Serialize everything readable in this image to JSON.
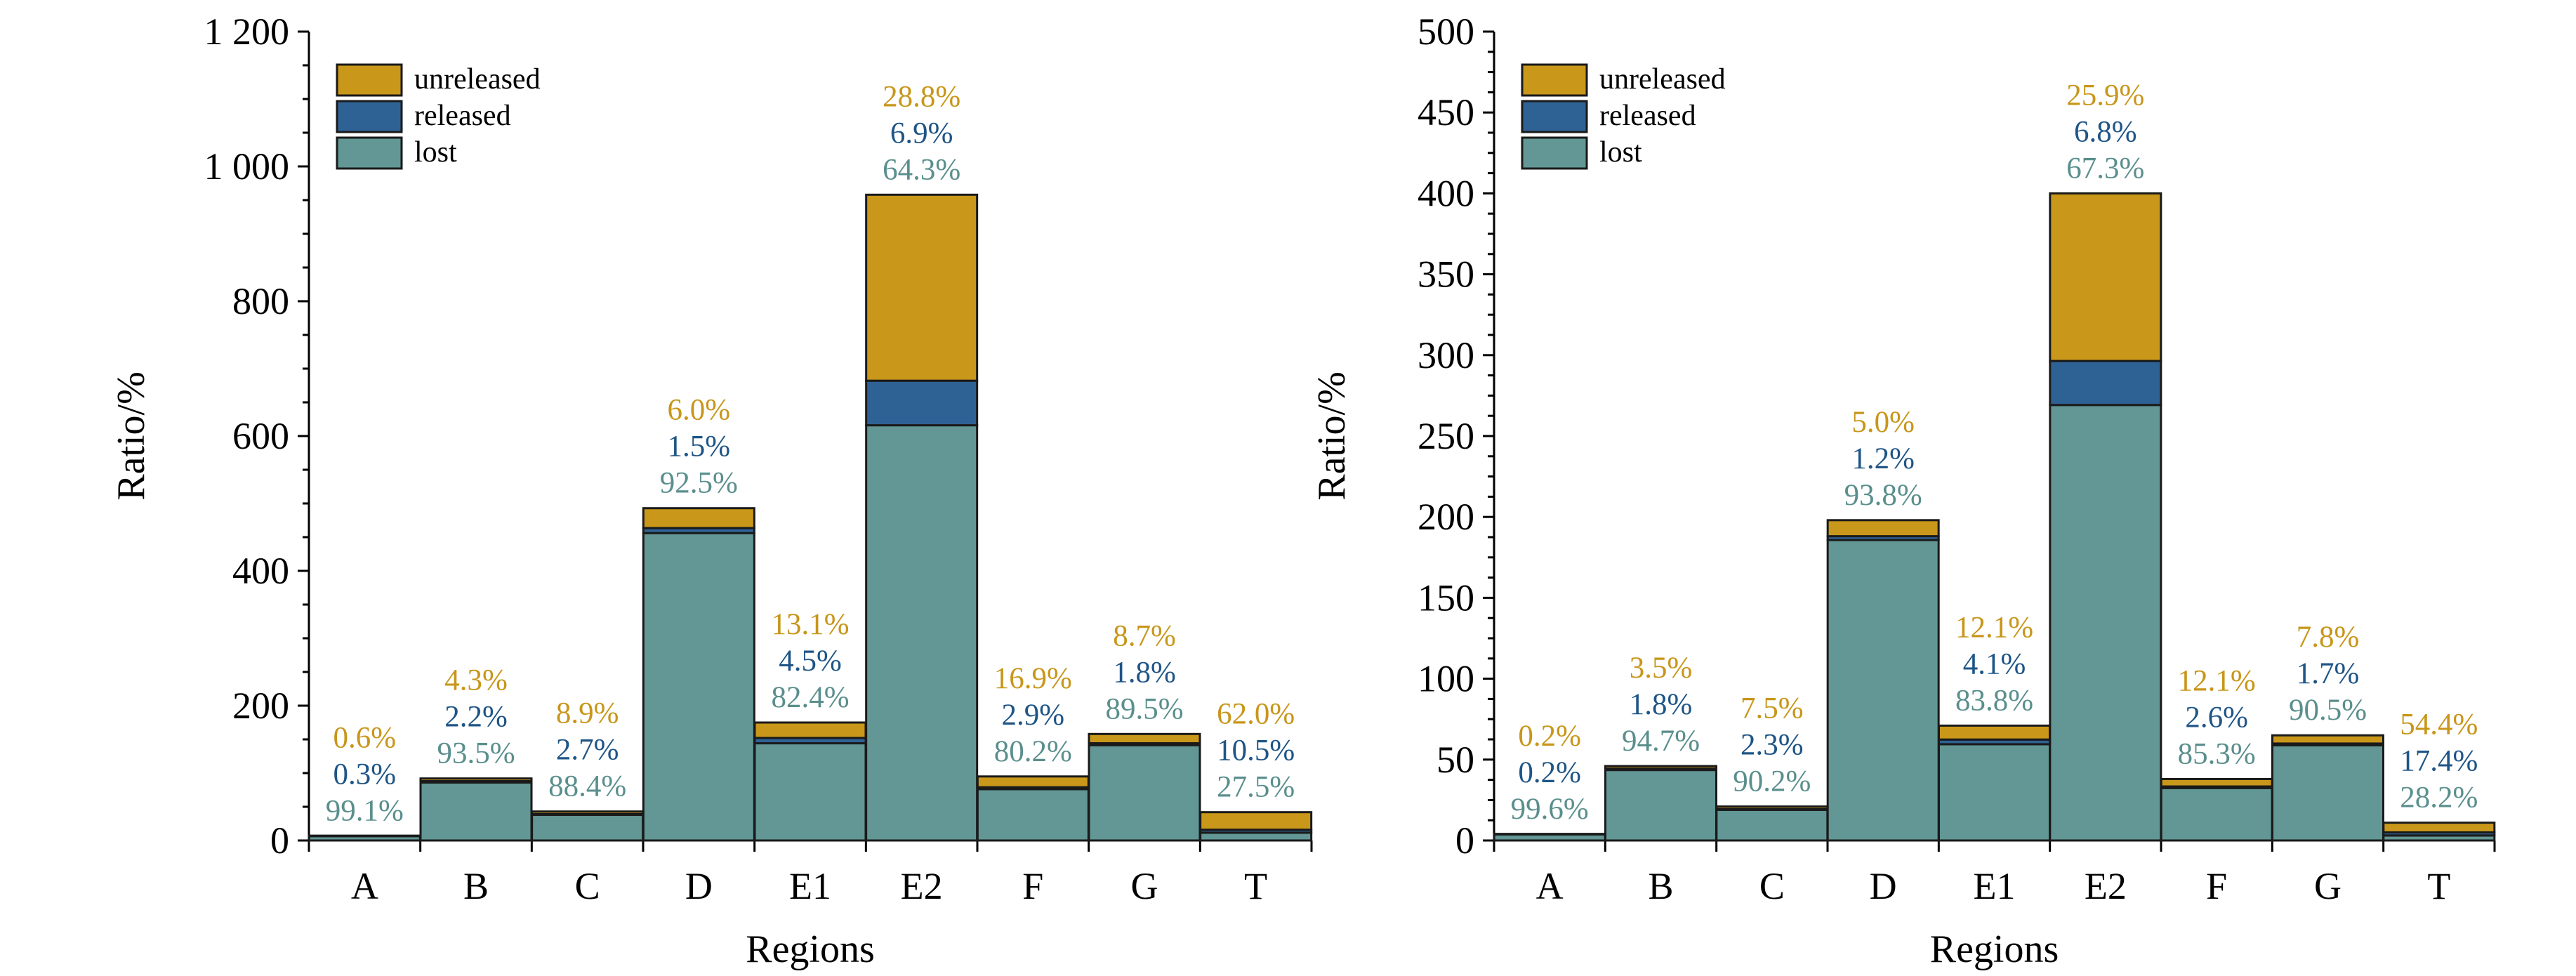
{
  "colors": {
    "lost": "#629795",
    "released": "#2f6294",
    "unreleased": "#c9971a",
    "lost_text": "#5a8f8d",
    "released_text": "#1f5586",
    "unreleased_text": "#c8961a"
  },
  "chart_data": [
    {
      "type": "bar",
      "stacked": true,
      "title": "",
      "xlabel": "Regions",
      "ylabel": "Ratio/%",
      "ylim": [
        0,
        1200
      ],
      "yticks": [
        0,
        200,
        400,
        600,
        800,
        1000,
        1200
      ],
      "ytick_labels": [
        "0",
        "200",
        "400",
        "600",
        "800",
        "1 000",
        "1 200"
      ],
      "legend_position": "top-left",
      "legend": [
        "unreleased",
        "released",
        "lost"
      ],
      "categories": [
        "A",
        "B",
        "C",
        "D",
        "E1",
        "E2",
        "F",
        "G",
        "T"
      ],
      "totals": [
        7,
        92,
        43,
        493,
        175,
        958,
        95,
        158,
        42
      ],
      "series": [
        {
          "name": "lost",
          "key": "lost",
          "pct": [
            99.1,
            93.5,
            88.4,
            92.5,
            82.4,
            64.3,
            80.2,
            89.5,
            27.5
          ],
          "labels": [
            "99.1%",
            "93.5%",
            "88.4%",
            "92.5%",
            "82.4%",
            "64.3%",
            "80.2%",
            "89.5%",
            "27.5%"
          ]
        },
        {
          "name": "released",
          "key": "released",
          "pct": [
            0.3,
            2.2,
            2.7,
            1.5,
            4.5,
            6.9,
            2.9,
            1.8,
            10.5
          ],
          "labels": [
            "0.3%",
            "2.2%",
            "2.7%",
            "1.5%",
            "4.5%",
            "6.9%",
            "2.9%",
            "1.8%",
            "10.5%"
          ]
        },
        {
          "name": "unreleased",
          "key": "unreleased",
          "pct": [
            0.6,
            4.3,
            8.9,
            6.0,
            13.1,
            28.8,
            16.9,
            8.7,
            62.0
          ],
          "labels": [
            "0.6%",
            "4.3%",
            "8.9%",
            "6.0%",
            "13.1%",
            "28.8%",
            "16.9%",
            "8.7%",
            "62.0%"
          ]
        }
      ]
    },
    {
      "type": "bar",
      "stacked": true,
      "title": "",
      "xlabel": "Regions",
      "ylabel": "Ratio/%",
      "ylim": [
        0,
        500
      ],
      "yticks": [
        0,
        50,
        100,
        150,
        200,
        250,
        300,
        350,
        400,
        450,
        500
      ],
      "ytick_labels": [
        "0",
        "50",
        "100",
        "150",
        "200",
        "250",
        "300",
        "350",
        "400",
        "450",
        "500"
      ],
      "legend_position": "top-left",
      "legend": [
        "unreleased",
        "released",
        "lost"
      ],
      "categories": [
        "A",
        "B",
        "C",
        "D",
        "E1",
        "E2",
        "F",
        "G",
        "T"
      ],
      "totals": [
        4,
        46,
        21,
        198,
        71,
        400,
        38,
        65,
        11
      ],
      "series": [
        {
          "name": "lost",
          "key": "lost",
          "pct": [
            99.6,
            94.7,
            90.2,
            93.8,
            83.8,
            67.3,
            85.3,
            90.5,
            28.2
          ],
          "labels": [
            "99.6%",
            "94.7%",
            "90.2%",
            "93.8%",
            "83.8%",
            "67.3%",
            "85.3%",
            "90.5%",
            "28.2%"
          ]
        },
        {
          "name": "released",
          "key": "released",
          "pct": [
            0.2,
            1.8,
            2.3,
            1.2,
            4.1,
            6.8,
            2.6,
            1.7,
            17.4
          ],
          "labels": [
            "0.2%",
            "1.8%",
            "2.3%",
            "1.2%",
            "4.1%",
            "6.8%",
            "2.6%",
            "1.7%",
            "17.4%"
          ]
        },
        {
          "name": "unreleased",
          "key": "unreleased",
          "pct": [
            0.2,
            3.5,
            7.5,
            5.0,
            12.1,
            25.9,
            12.1,
            7.8,
            54.4
          ],
          "labels": [
            "0.2%",
            "3.5%",
            "7.5%",
            "5.0%",
            "12.1%",
            "25.9%",
            "12.1%",
            "7.8%",
            "54.4%"
          ]
        }
      ]
    }
  ]
}
